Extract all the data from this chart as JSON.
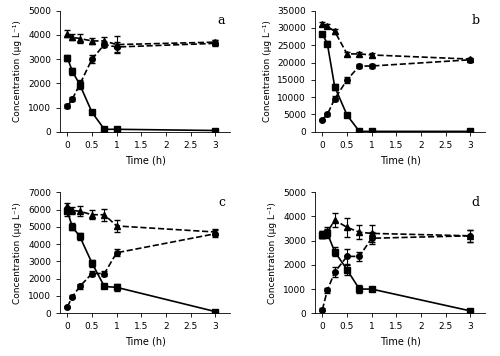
{
  "panels": [
    {
      "label": "a",
      "ylim": [
        0,
        5000
      ],
      "yticks": [
        0,
        1000,
        2000,
        3000,
        4000,
        5000
      ],
      "time": [
        0,
        0.1,
        0.25,
        0.5,
        0.75,
        1.0,
        3.0
      ],
      "total": [
        4050,
        3900,
        3850,
        3750,
        3750,
        3600,
        3700
      ],
      "total_sd": [
        150,
        130,
        200,
        130,
        180,
        350,
        100
      ],
      "free": [
        3050,
        2500,
        1950,
        800,
        100,
        100,
        50
      ],
      "free_sd": [
        120,
        150,
        180,
        80,
        20,
        20,
        10
      ],
      "nox": [
        1050,
        1350,
        1950,
        3000,
        3600,
        3500,
        3650
      ],
      "nox_sd": [
        80,
        100,
        150,
        150,
        100,
        200,
        120
      ]
    },
    {
      "label": "b",
      "ylim": [
        0,
        35000
      ],
      "yticks": [
        0,
        5000,
        10000,
        15000,
        20000,
        25000,
        30000,
        35000
      ],
      "time": [
        0,
        0.1,
        0.25,
        0.5,
        0.75,
        1.0,
        3.0
      ],
      "total": [
        31200,
        30500,
        29000,
        22500,
        22500,
        22200,
        21000
      ],
      "total_sd": [
        500,
        600,
        700,
        600,
        500,
        500,
        400
      ],
      "free": [
        28200,
        25500,
        13000,
        4800,
        100,
        100,
        100
      ],
      "free_sd": [
        600,
        700,
        800,
        500,
        50,
        50,
        30
      ],
      "nox": [
        3500,
        5000,
        9500,
        15000,
        19000,
        19000,
        20800
      ],
      "nox_sd": [
        300,
        400,
        700,
        900,
        600,
        600,
        500
      ]
    },
    {
      "label": "c",
      "ylim": [
        0,
        7000
      ],
      "yticks": [
        0,
        1000,
        2000,
        3000,
        4000,
        5000,
        6000,
        7000
      ],
      "time": [
        0,
        0.1,
        0.25,
        0.5,
        0.75,
        1.0,
        3.0
      ],
      "total": [
        6200,
        5950,
        5900,
        5700,
        5700,
        5050,
        4700
      ],
      "total_sd": [
        200,
        200,
        300,
        250,
        350,
        350,
        200
      ],
      "free": [
        5900,
        5000,
        4450,
        2900,
        1550,
        1500,
        100
      ],
      "free_sd": [
        250,
        200,
        200,
        200,
        100,
        200,
        30
      ],
      "nox": [
        380,
        950,
        1550,
        2300,
        2300,
        3500,
        4600
      ],
      "nox_sd": [
        50,
        80,
        120,
        150,
        150,
        200,
        200
      ]
    },
    {
      "label": "d",
      "ylim": [
        0,
        5000
      ],
      "yticks": [
        0,
        1000,
        2000,
        3000,
        4000,
        5000
      ],
      "time": [
        0,
        0.1,
        0.25,
        0.5,
        0.75,
        1.0,
        3.0
      ],
      "total": [
        3250,
        3350,
        3850,
        3550,
        3350,
        3300,
        3200
      ],
      "total_sd": [
        150,
        200,
        300,
        400,
        300,
        350,
        250
      ],
      "free": [
        3250,
        3300,
        2550,
        1800,
        1000,
        1000,
        100
      ],
      "free_sd": [
        150,
        200,
        200,
        200,
        150,
        100,
        30
      ],
      "nox": [
        150,
        950,
        1700,
        2350,
        2350,
        3100,
        3200
      ],
      "nox_sd": [
        50,
        100,
        200,
        300,
        200,
        250,
        250
      ]
    }
  ],
  "xlabel": "Time (h)",
  "ylabel": "Concentration (μg L⁻¹)",
  "xticks": [
    0,
    0.5,
    1,
    1.5,
    2,
    2.5,
    3
  ],
  "xticklabels": [
    "0",
    "0.5",
    "1",
    "1.5",
    "2",
    "2.5",
    "3"
  ],
  "line_color": "black",
  "marker_total": "^",
  "marker_free": "s",
  "marker_nox": "o",
  "linestyle_total": "--",
  "linestyle_free": "-",
  "linestyle_nox": "--",
  "markersize": 4,
  "linewidth": 1.2,
  "elinewidth": 0.8,
  "capsize": 2
}
